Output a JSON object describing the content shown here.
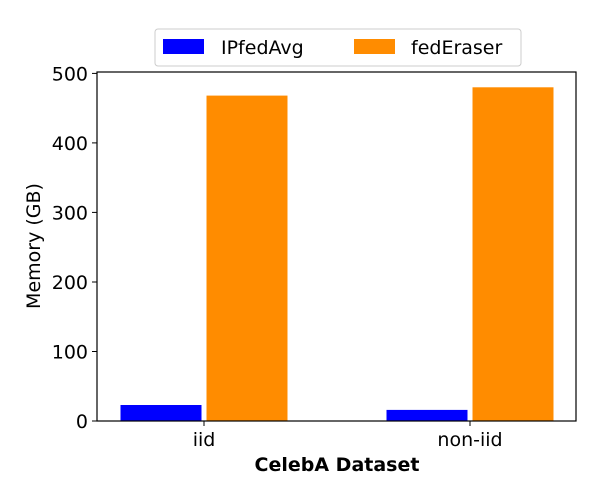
{
  "chart_data": {
    "type": "bar",
    "title": "",
    "xlabel": "CelebA Dataset",
    "ylabel": "Memory (GB)",
    "categories": [
      "iid",
      "non-iid"
    ],
    "series": [
      {
        "name": "IPfedAvg",
        "values": [
          23,
          16
        ],
        "color": "#0000ff"
      },
      {
        "name": "fedEraser",
        "values": [
          468,
          480
        ],
        "color": "#ff8c00"
      }
    ],
    "ylim": [
      0,
      502
    ],
    "yticks": [
      0,
      100,
      200,
      300,
      400,
      500
    ],
    "grid": false,
    "legend_position": "top-center"
  }
}
